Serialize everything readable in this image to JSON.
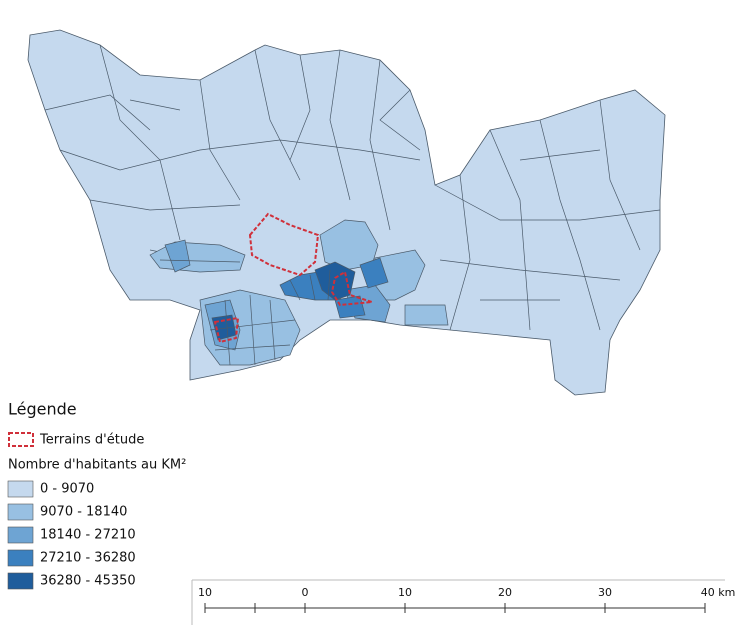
{
  "legend": {
    "title": "Légende",
    "study_area": "Terrains d'étude",
    "density_title": "Nombre d'habitants au KM²",
    "classes": [
      {
        "label": "0 - 9070",
        "color": "#c5d9ee"
      },
      {
        "label": "9070 - 18140",
        "color": "#98c0e2"
      },
      {
        "label": "18140 - 27210",
        "color": "#6ea4d3"
      },
      {
        "label": "27210 - 36280",
        "color": "#3b80bf"
      },
      {
        "label": "36280 - 45350",
        "color": "#1f5d9c"
      }
    ]
  },
  "scale_bar": {
    "labels": [
      "10",
      "0",
      "10",
      "20",
      "30",
      "40 km"
    ]
  }
}
